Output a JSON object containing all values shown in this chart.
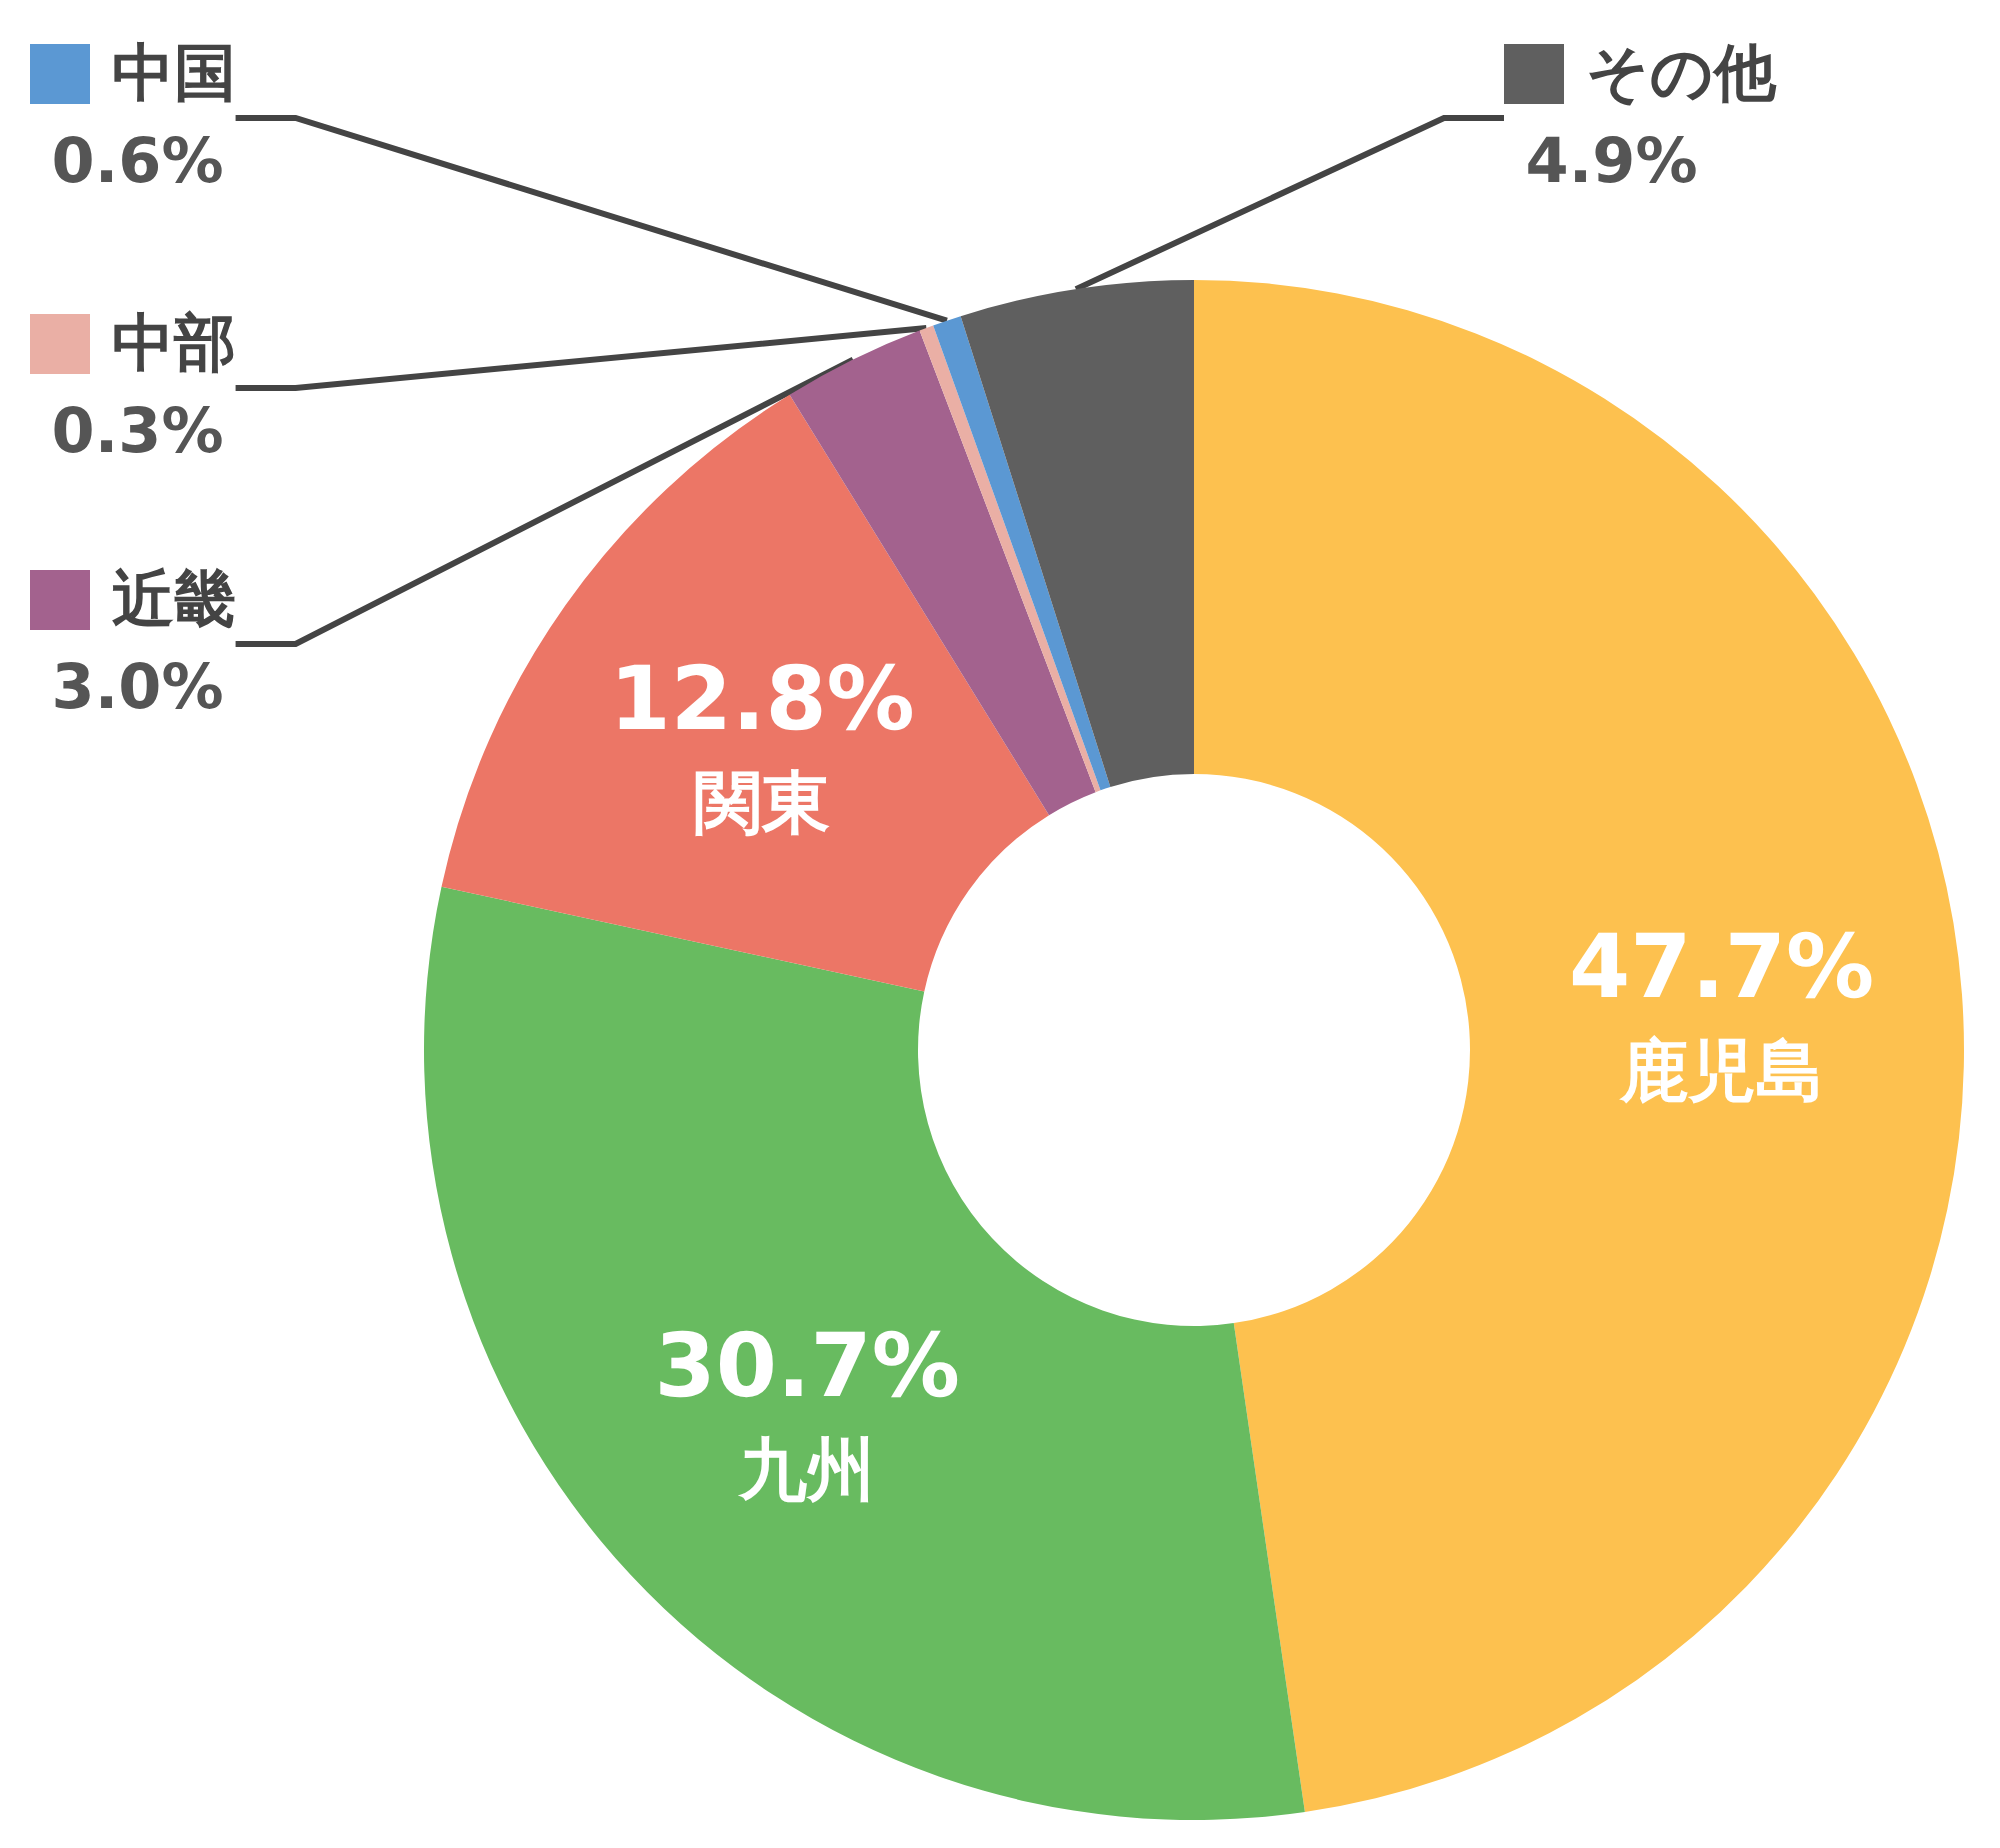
{
  "chart_data": {
    "type": "donut",
    "categories": [
      "鹿児島",
      "九州",
      "関東",
      "近畿",
      "中部",
      "中国",
      "その他"
    ],
    "values": [
      47.7,
      30.7,
      12.8,
      3.0,
      0.3,
      0.6,
      4.9
    ],
    "colors": [
      "#fdc14f",
      "#68bb60",
      "#ec7666",
      "#a3628e",
      "#eaafa5",
      "#5b98d3",
      "#5f5f5f"
    ],
    "value_labels": [
      "47.7%",
      "30.7%",
      "12.8%",
      "3.0%",
      "0.3%",
      "0.6%",
      "4.9%"
    ],
    "legend": "top"
  }
}
